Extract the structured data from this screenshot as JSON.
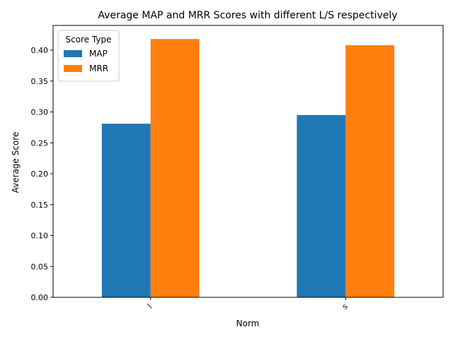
{
  "chart_data": {
    "type": "bar",
    "title": "Average MAP and MRR Scores with different L/S respectively",
    "xlabel": "Norm",
    "ylabel": "Average Score",
    "categories": [
      "l",
      "s"
    ],
    "series": [
      {
        "name": "MAP",
        "values": [
          0.281,
          0.295
        ],
        "color": "#1f77b4"
      },
      {
        "name": "MRR",
        "values": [
          0.418,
          0.408
        ],
        "color": "#ff7f0e"
      }
    ],
    "ylim": [
      0,
      0.44
    ],
    "yticks": [
      0.0,
      0.05,
      0.1,
      0.15,
      0.2,
      0.25,
      0.3,
      0.35,
      0.4
    ],
    "ytick_labels": [
      "0.00",
      "0.05",
      "0.10",
      "0.15",
      "0.20",
      "0.25",
      "0.30",
      "0.35",
      "0.40"
    ],
    "legend": {
      "title": "Score Type",
      "position": "top-left"
    },
    "grid": false
  }
}
